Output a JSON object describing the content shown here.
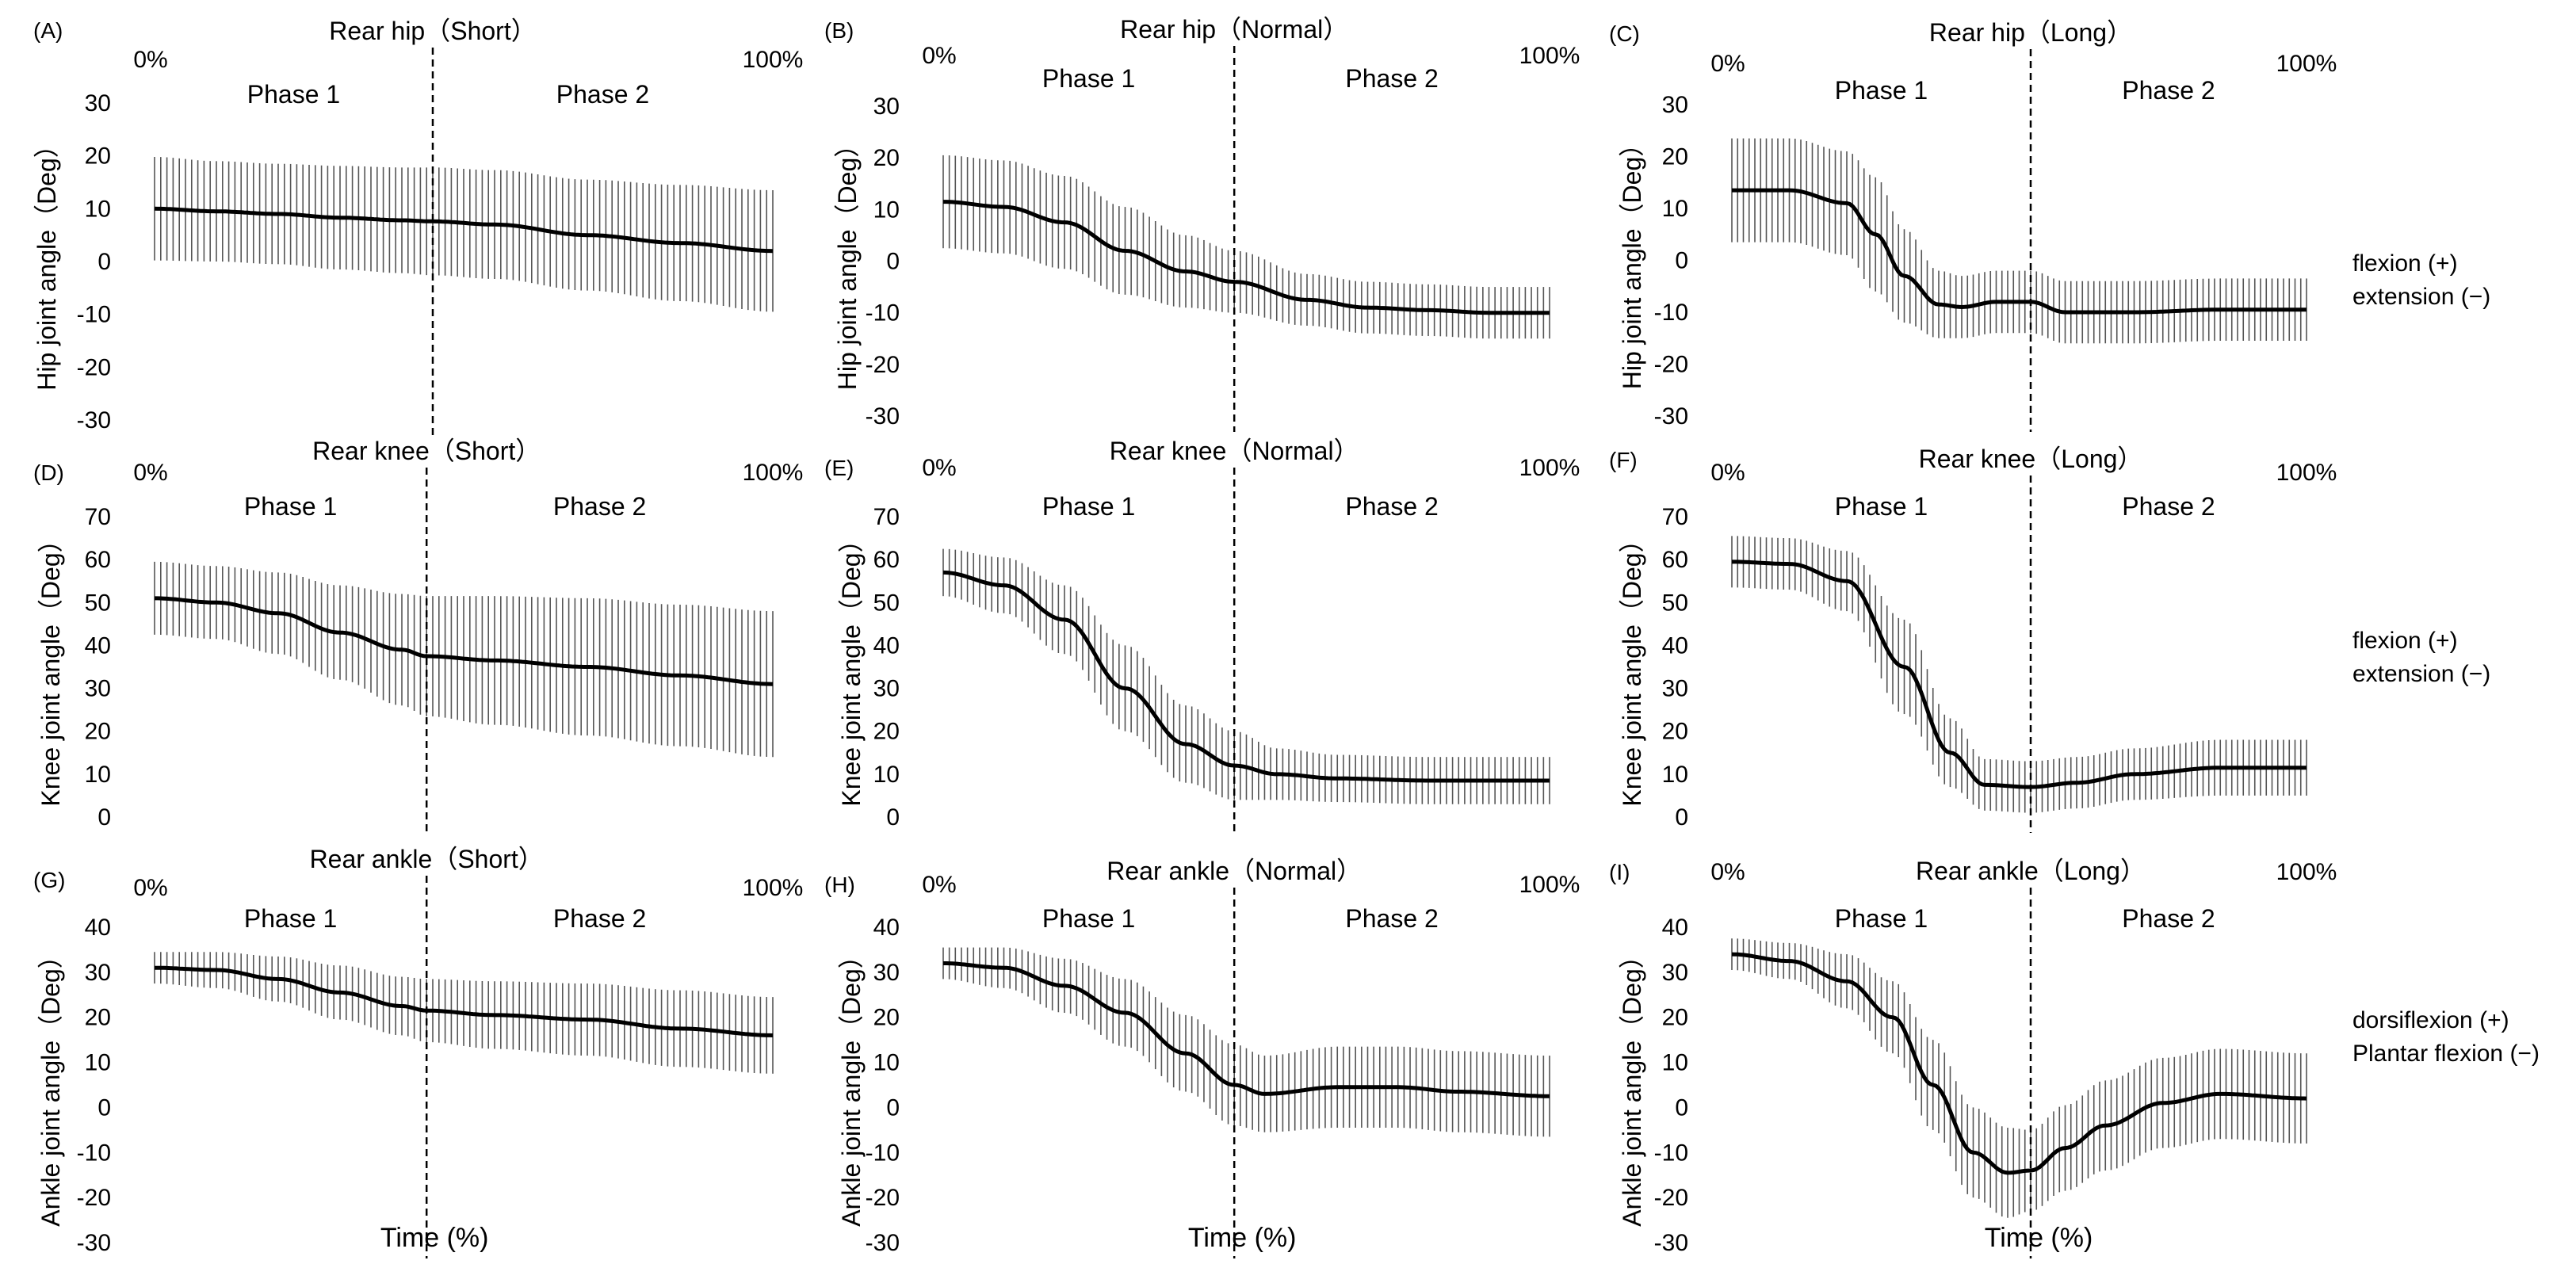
{
  "figure": {
    "x_axis_title": "Time (%)",
    "legends": [
      {
        "lines": [
          "flexion (+)",
          "extension (−)"
        ]
      },
      {
        "lines": [
          "flexion (+)",
          "extension (−)"
        ]
      },
      {
        "lines": [
          "dorsiflexion (+)",
          "Plantar flexion (−)"
        ]
      }
    ]
  },
  "chart_data": [
    {
      "id": "A",
      "panel_label": "(A)",
      "type": "line",
      "title": "Rear hip（Short）",
      "ylabel": "Hip joint angle（Deg）",
      "x_start_label": "0%",
      "x_end_label": "100%",
      "phase_labels": [
        "Phase 1",
        "Phase 2"
      ],
      "phase_boundary": 45,
      "ylim": [
        -30,
        30
      ],
      "yticks": [
        30,
        20,
        10,
        0,
        -10,
        -20,
        -30
      ],
      "x_keys": [
        0,
        10,
        20,
        30,
        40,
        45,
        55,
        70,
        85,
        100
      ],
      "mean_keys": [
        10,
        9.5,
        9,
        8.3,
        7.8,
        7.6,
        7,
        5,
        3.5,
        2
      ],
      "sd_keys": [
        9.8,
        9.5,
        9.5,
        9.8,
        10,
        10.2,
        10.3,
        10.5,
        11,
        11.5
      ]
    },
    {
      "id": "B",
      "panel_label": "(B)",
      "type": "line",
      "title": "Rear hip（Normal）",
      "ylabel": "Hip joint angle（Deg）",
      "x_start_label": "0%",
      "x_end_label": "100%",
      "phase_labels": [
        "Phase 1",
        "Phase 2"
      ],
      "phase_boundary": 48,
      "ylim": [
        -30,
        30
      ],
      "yticks": [
        30,
        20,
        10,
        0,
        -10,
        -20,
        -30
      ],
      "x_keys": [
        0,
        10,
        20,
        30,
        40,
        48,
        60,
        70,
        80,
        90,
        100
      ],
      "mean_keys": [
        11.5,
        10.5,
        7.5,
        2,
        -2,
        -4,
        -7.5,
        -9,
        -9.5,
        -10,
        -10
      ],
      "sd_keys": [
        9,
        9,
        9,
        8.5,
        7,
        6,
        5,
        5,
        5,
        5,
        5
      ]
    },
    {
      "id": "C",
      "panel_label": "(C)",
      "type": "line",
      "title": "Rear hip（Long）",
      "ylabel": "Hip joint angle（Deg）",
      "x_start_label": "0%",
      "x_end_label": "100%",
      "phase_labels": [
        "Phase 1",
        "Phase 2"
      ],
      "phase_boundary": 52,
      "ylim": [
        -30,
        30
      ],
      "yticks": [
        30,
        20,
        10,
        0,
        -10,
        -20,
        -30
      ],
      "x_keys": [
        0,
        10,
        20,
        25,
        30,
        36,
        40,
        46,
        52,
        58,
        70,
        85,
        100
      ],
      "mean_keys": [
        13.5,
        13.5,
        11,
        5,
        -3,
        -8.5,
        -9,
        -8,
        -8,
        -10,
        -10,
        -9.5,
        -9.5
      ],
      "sd_keys": [
        10,
        10,
        10,
        11,
        9,
        6.5,
        6,
        6,
        6,
        6,
        6,
        6,
        6
      ]
    },
    {
      "id": "D",
      "panel_label": "(D)",
      "type": "line",
      "title": "Rear knee（Short）",
      "ylabel": "Knee joint angle（Deg）",
      "x_start_label": "0%",
      "x_end_label": "100%",
      "phase_labels": [
        "Phase 1",
        "Phase 2"
      ],
      "phase_boundary": 44,
      "ylim": [
        0,
        70
      ],
      "yticks": [
        70,
        60,
        50,
        40,
        30,
        20,
        10,
        0
      ],
      "x_keys": [
        0,
        10,
        20,
        30,
        40,
        44,
        55,
        70,
        85,
        100
      ],
      "mean_keys": [
        51,
        50,
        47.5,
        43,
        39,
        37.5,
        36.5,
        35,
        33,
        31
      ],
      "sd_keys": [
        8.5,
        8.5,
        9.5,
        11,
        13,
        14,
        15,
        16,
        16.5,
        17
      ]
    },
    {
      "id": "E",
      "panel_label": "(E)",
      "type": "line",
      "title": "Rear knee（Normal）",
      "ylabel": "Knee joint angle（Deg）",
      "x_start_label": "0%",
      "x_end_label": "100%",
      "phase_labels": [
        "Phase 1",
        "Phase 2"
      ],
      "phase_boundary": 48,
      "ylim": [
        0,
        70
      ],
      "yticks": [
        70,
        60,
        50,
        40,
        30,
        20,
        10,
        0
      ],
      "x_keys": [
        0,
        10,
        20,
        30,
        40,
        48,
        55,
        65,
        80,
        100
      ],
      "mean_keys": [
        57,
        54,
        46,
        30,
        17,
        12,
        10,
        9,
        8.5,
        8.5
      ],
      "sd_keys": [
        5.5,
        6.5,
        8,
        10,
        9,
        8,
        6,
        5.5,
        5.5,
        5.5
      ]
    },
    {
      "id": "F",
      "panel_label": "(F)",
      "type": "line",
      "title": "Rear knee（Long）",
      "ylabel": "Knee joint angle（Deg）",
      "x_start_label": "0%",
      "x_end_label": "100%",
      "phase_labels": [
        "Phase 1",
        "Phase 2"
      ],
      "phase_boundary": 52,
      "ylim": [
        0,
        70
      ],
      "yticks": [
        70,
        60,
        50,
        40,
        30,
        20,
        10,
        0
      ],
      "x_keys": [
        0,
        10,
        20,
        30,
        38,
        44,
        52,
        60,
        70,
        85,
        100
      ],
      "mean_keys": [
        59.5,
        59,
        55,
        35,
        15,
        7.5,
        7,
        8,
        10,
        11.5,
        11.5
      ],
      "sd_keys": [
        6,
        6,
        7,
        11,
        8,
        6,
        6,
        6,
        6,
        6.5,
        6.5
      ]
    },
    {
      "id": "G",
      "panel_label": "(G)",
      "type": "line",
      "title": "Rear ankle（Short）",
      "ylabel": "Ankle joint angle（Deg）",
      "x_start_label": "0%",
      "x_end_label": "100%",
      "phase_labels": [
        "Phase 1",
        "Phase 2"
      ],
      "phase_boundary": 44,
      "ylim": [
        -30,
        40
      ],
      "yticks": [
        40,
        30,
        20,
        10,
        0,
        -10,
        -20,
        -30
      ],
      "x_keys": [
        0,
        10,
        20,
        30,
        40,
        44,
        55,
        70,
        85,
        100
      ],
      "mean_keys": [
        31,
        30.5,
        28.5,
        25.5,
        22.5,
        21.5,
        20.5,
        19.5,
        17.5,
        16
      ],
      "sd_keys": [
        3.5,
        4,
        5,
        6,
        6.5,
        7,
        7.5,
        8,
        8.5,
        8.5
      ]
    },
    {
      "id": "H",
      "panel_label": "(H)",
      "type": "line",
      "title": "Rear ankle（Normal）",
      "ylabel": "Ankle joint angle（Deg）",
      "x_start_label": "0%",
      "x_end_label": "100%",
      "phase_labels": [
        "Phase 1",
        "Phase 2"
      ],
      "phase_boundary": 48,
      "ylim": [
        -30,
        40
      ],
      "yticks": [
        40,
        30,
        20,
        10,
        0,
        -10,
        -20,
        -30
      ],
      "x_keys": [
        0,
        10,
        20,
        30,
        40,
        48,
        53,
        65,
        75,
        85,
        100
      ],
      "mean_keys": [
        32,
        31,
        27,
        21,
        12,
        5,
        3,
        4.5,
        4.5,
        3.5,
        2.5
      ],
      "sd_keys": [
        3.5,
        4.5,
        6,
        7.5,
        8.5,
        9,
        8.5,
        9,
        9,
        9,
        9
      ]
    },
    {
      "id": "I",
      "panel_label": "(I)",
      "type": "line",
      "title": "Rear ankle（Long）",
      "ylabel": "Ankle joint angle（Deg）",
      "x_start_label": "0%",
      "x_end_label": "100%",
      "phase_labels": [
        "Phase 1",
        "Phase 2"
      ],
      "phase_boundary": 52,
      "ylim": [
        -30,
        40
      ],
      "yticks": [
        40,
        30,
        20,
        10,
        0,
        -10,
        -20,
        -30
      ],
      "x_keys": [
        0,
        10,
        20,
        28,
        35,
        42,
        48,
        52,
        58,
        65,
        75,
        85,
        100
      ],
      "mean_keys": [
        34,
        32.5,
        28,
        20,
        5,
        -10,
        -14.5,
        -14,
        -9,
        -4,
        1,
        3,
        2
      ],
      "sd_keys": [
        3.5,
        4,
        6,
        8,
        10,
        10,
        10,
        9,
        9.5,
        10,
        10,
        10,
        10
      ]
    }
  ]
}
